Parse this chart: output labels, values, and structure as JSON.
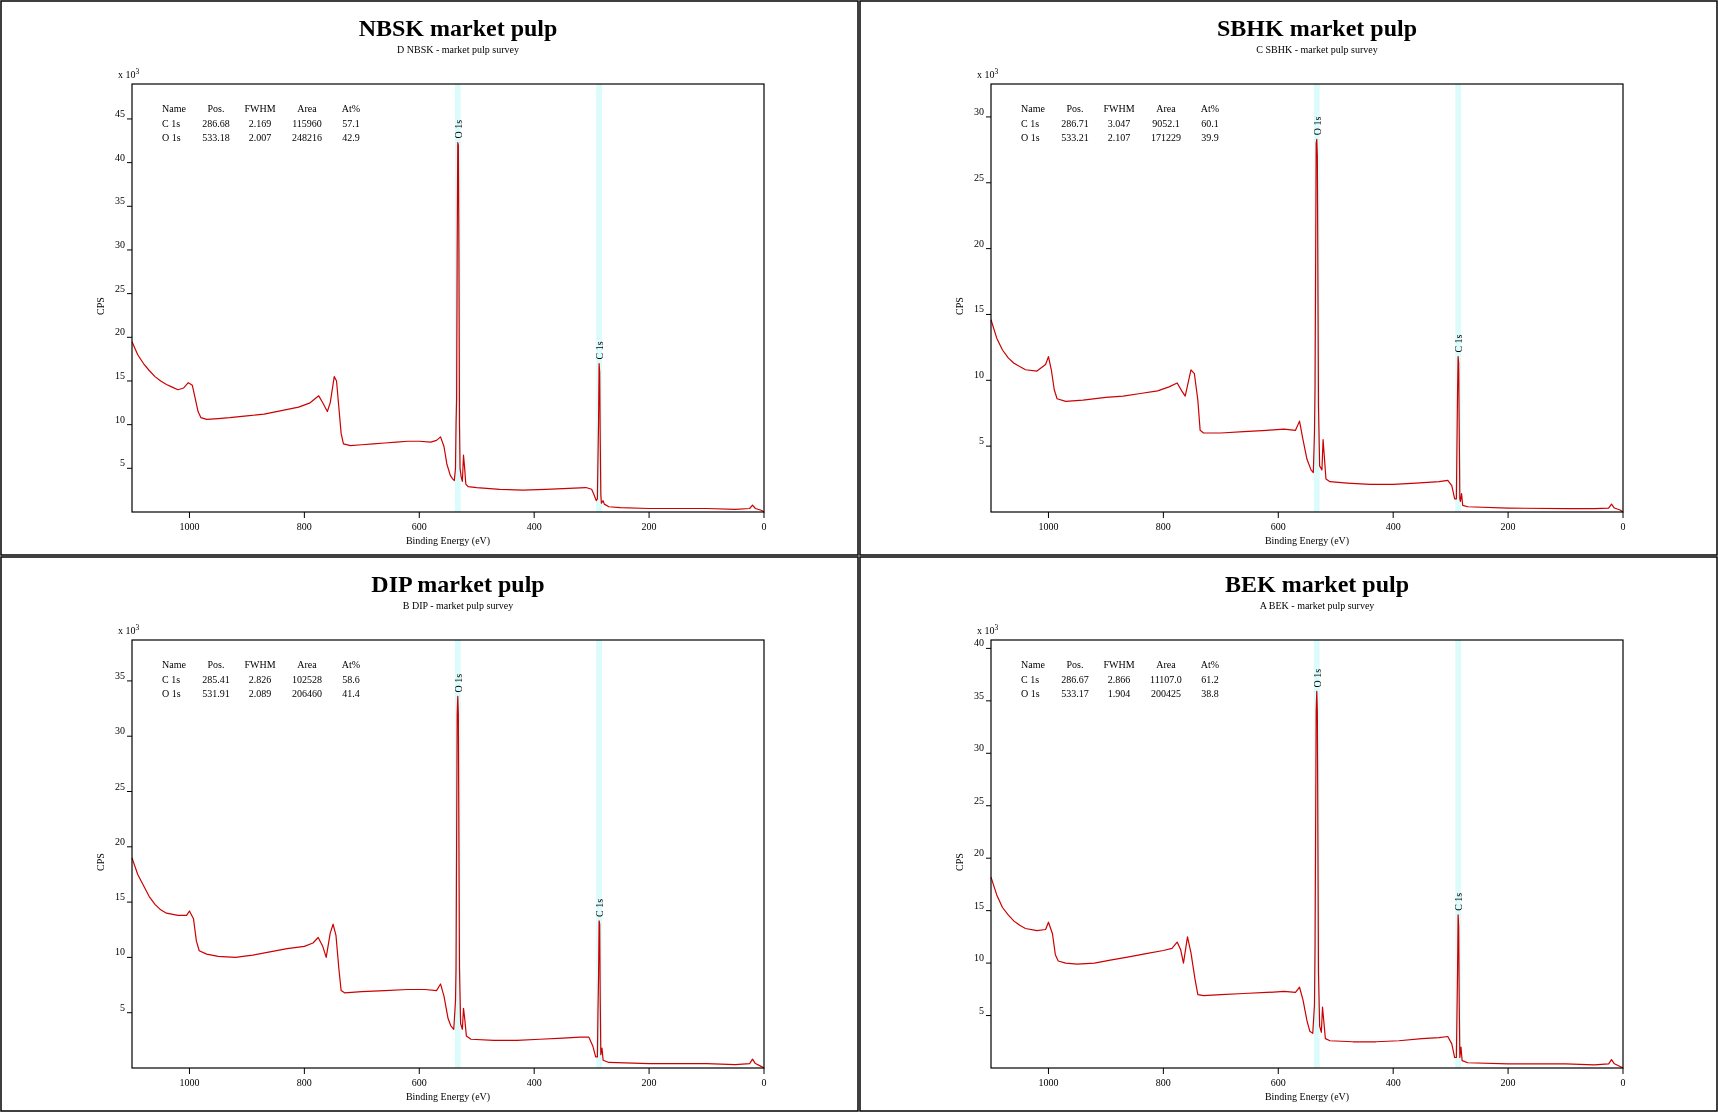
{
  "chart_data": [
    {
      "type": "line",
      "title": "NBSK market pulp",
      "subtitle": "D NBSK - market pulp survey",
      "xlabel": "Binding Energy (eV)",
      "ylabel": "CPS",
      "annotations": [
        "x 10$^{3}$",
        "Name",
        "Pos.",
        "FWHM",
        "Area",
        "At%",
        "C 1s",
        "286.68",
        "2.169",
        "115960",
        "57.1",
        "O 1s",
        "533.18",
        "2.007",
        "248216",
        "42.9"
      ],
      "xlim": [
        1100,
        0
      ],
      "xticks": [
        1000,
        800,
        600,
        400,
        200,
        0
      ],
      "ylim": [
        0,
        49
      ],
      "yticks": [
        5,
        10,
        15,
        20,
        25,
        30,
        35,
        40,
        45
      ],
      "bands": [
        {
          "axis": "x",
          "from": 538,
          "to": 528,
          "label": "O 1s",
          "color": "#dcfbfb"
        },
        {
          "axis": "x",
          "from": 292,
          "to": 282,
          "label": "C 1s",
          "color": "#dcfbfb"
        }
      ],
      "color": "#cc0000",
      "x": [
        1100,
        1090,
        1080,
        1070,
        1060,
        1050,
        1040,
        1030,
        1020,
        1010,
        1002,
        995,
        990,
        985,
        980,
        970,
        950,
        930,
        900,
        870,
        840,
        810,
        790,
        775,
        768,
        760,
        755,
        748,
        744,
        740,
        736,
        732,
        720,
        700,
        680,
        660,
        640,
        620,
        600,
        580,
        570,
        563,
        557,
        552,
        546,
        542,
        539,
        537,
        536,
        535,
        534,
        533,
        532,
        531,
        530,
        529,
        527,
        525,
        523,
        521,
        519,
        515,
        500,
        460,
        420,
        380,
        340,
        310,
        300,
        296,
        292,
        290,
        289,
        288,
        287,
        286,
        285,
        284,
        283,
        280,
        278,
        270,
        250,
        200,
        150,
        100,
        50,
        25,
        20,
        15,
        5,
        0
      ],
      "values": [
        19.5,
        18,
        17,
        16.2,
        15.5,
        15,
        14.6,
        14.3,
        14,
        14.2,
        14.8,
        14.5,
        13,
        11.5,
        10.8,
        10.6,
        10.7,
        10.8,
        11,
        11.2,
        11.6,
        12,
        12.5,
        13.3,
        12.5,
        11.5,
        12.5,
        15.5,
        15,
        12,
        9,
        7.8,
        7.6,
        7.7,
        7.8,
        7.9,
        8,
        8.1,
        8.1,
        8,
        8.2,
        8.6,
        7.5,
        5.5,
        4.2,
        3.8,
        3.6,
        5,
        10,
        13,
        30,
        42.3,
        42,
        30,
        10,
        5,
        4,
        3.5,
        6.5,
        5,
        3.2,
        2.9,
        2.8,
        2.6,
        2.5,
        2.6,
        2.7,
        2.8,
        2.6,
        2,
        1.3,
        1.5,
        6,
        10,
        17,
        16,
        8,
        2,
        1,
        1.3,
        0.9,
        0.6,
        0.5,
        0.4,
        0.4,
        0.4,
        0.3,
        0.4,
        0.8,
        0.4,
        0.2,
        0
      ]
    },
    {
      "type": "line",
      "title": "SBHK market pulp",
      "subtitle": "C SBHK - market pulp survey",
      "xlabel": "Binding Energy (eV)",
      "ylabel": "CPS",
      "annotations": [
        "x 10$^{3}$",
        "Name",
        "Pos.",
        "FWHM",
        "Area",
        "At%",
        "C 1s",
        "286.71",
        "3.047",
        "9052.1",
        "60.1",
        "O 1s",
        "533.21",
        "2.107",
        "171229",
        "39.9"
      ],
      "xlim": [
        1100,
        0
      ],
      "xticks": [
        1000,
        800,
        600,
        400,
        200,
        0
      ],
      "ylim": [
        0,
        32.5
      ],
      "yticks": [
        5,
        10,
        15,
        20,
        25,
        30
      ],
      "bands": [
        {
          "axis": "x",
          "from": 538,
          "to": 528,
          "label": "O 1s",
          "color": "#dcfbfb"
        },
        {
          "axis": "x",
          "from": 292,
          "to": 282,
          "label": "C 1s",
          "color": "#dcfbfb"
        }
      ],
      "color": "#cc0000",
      "x": [
        1100,
        1090,
        1080,
        1070,
        1060,
        1040,
        1020,
        1005,
        1000,
        995,
        990,
        985,
        970,
        940,
        900,
        870,
        840,
        810,
        790,
        776,
        768,
        762,
        752,
        746,
        740,
        736,
        730,
        700,
        660,
        620,
        590,
        570,
        563,
        557,
        550,
        543,
        539,
        537,
        536,
        534,
        533,
        532,
        530,
        528,
        524,
        522,
        520,
        517,
        510,
        480,
        440,
        400,
        360,
        320,
        305,
        298,
        293,
        290,
        289,
        288,
        287,
        286,
        285,
        284,
        283,
        281,
        279,
        270,
        200,
        100,
        50,
        25,
        20,
        15,
        5,
        0
      ],
      "values": [
        14.6,
        13.2,
        12.3,
        11.7,
        11.3,
        10.8,
        10.7,
        11.2,
        11.8,
        10.8,
        9.3,
        8.6,
        8.4,
        8.5,
        8.7,
        8.8,
        9,
        9.2,
        9.5,
        9.8,
        9.2,
        8.8,
        10.8,
        10.5,
        8.5,
        6.2,
        6,
        6,
        6.1,
        6.2,
        6.3,
        6.2,
        6.9,
        5.5,
        4,
        3.2,
        3,
        6,
        9.5,
        28,
        28.3,
        27,
        8,
        3.5,
        3.2,
        5.5,
        4.3,
        2.5,
        2.3,
        2.2,
        2.1,
        2.1,
        2.2,
        2.3,
        2.4,
        2,
        1,
        1,
        5,
        9,
        11.8,
        11.3,
        6,
        1,
        0.8,
        1.4,
        0.5,
        0.4,
        0.3,
        0.25,
        0.25,
        0.3,
        0.6,
        0.3,
        0.15,
        0
      ]
    },
    {
      "type": "line",
      "title": "DIP market pulp",
      "subtitle": "B DIP - market pulp survey",
      "xlabel": "Binding Energy (eV)",
      "ylabel": "CPS",
      "annotations": [
        "x 10$^{3}$",
        "Name",
        "Pos.",
        "FWHM",
        "Area",
        "At%",
        "C 1s",
        "285.41",
        "2.826",
        "102528",
        "58.6",
        "O 1s",
        "531.91",
        "2.089",
        "206460",
        "41.4"
      ],
      "xlim": [
        1100,
        0
      ],
      "xticks": [
        1000,
        800,
        600,
        400,
        200,
        0
      ],
      "ylim": [
        0,
        38.7
      ],
      "yticks": [
        5,
        10,
        15,
        20,
        25,
        30,
        35
      ],
      "bands": [
        {
          "axis": "x",
          "from": 538,
          "to": 528,
          "label": "O 1s",
          "color": "#dcfbfb"
        },
        {
          "axis": "x",
          "from": 292,
          "to": 282,
          "label": "C 1s",
          "color": "#dcfbfb"
        }
      ],
      "color": "#cc0000",
      "x": [
        1100,
        1090,
        1080,
        1070,
        1060,
        1050,
        1040,
        1020,
        1005,
        1000,
        993,
        988,
        983,
        970,
        950,
        920,
        890,
        860,
        830,
        800,
        785,
        776,
        768,
        762,
        755,
        750,
        745,
        740,
        736,
        730,
        700,
        660,
        620,
        590,
        570,
        563,
        557,
        550,
        545,
        540,
        537,
        536,
        534,
        533,
        532,
        530,
        528,
        525,
        523,
        521,
        518,
        510,
        470,
        430,
        390,
        350,
        320,
        305,
        298,
        293,
        290,
        289,
        288,
        287,
        286,
        285,
        284,
        282,
        280,
        270,
        200,
        100,
        50,
        25,
        20,
        15,
        5,
        0
      ],
      "values": [
        19,
        17.5,
        16.5,
        15.5,
        14.8,
        14.3,
        14,
        13.8,
        13.8,
        14.2,
        13.5,
        11.5,
        10.6,
        10.3,
        10.1,
        10,
        10.2,
        10.5,
        10.8,
        11,
        11.3,
        11.8,
        11,
        10,
        12.2,
        13,
        12,
        9,
        7,
        6.8,
        6.9,
        7,
        7.1,
        7.1,
        7,
        7.6,
        6.5,
        4.5,
        3.8,
        3.5,
        6,
        9,
        32,
        33.6,
        32,
        9,
        4,
        3.5,
        5.4,
        4.5,
        2.9,
        2.6,
        2.5,
        2.5,
        2.6,
        2.7,
        2.8,
        2.8,
        2,
        1,
        1,
        5,
        8,
        13.3,
        13,
        6,
        1.2,
        1.8,
        0.7,
        0.5,
        0.4,
        0.4,
        0.3,
        0.4,
        0.8,
        0.4,
        0.15,
        0
      ]
    },
    {
      "type": "line",
      "title": "BEK market pulp",
      "subtitle": "A BEK - market pulp survey",
      "xlabel": "Binding Energy (eV)",
      "ylabel": "CPS",
      "annotations": [
        "x 10$^{3}$",
        "Name",
        "Pos.",
        "FWHM",
        "Area",
        "At%",
        "C 1s",
        "286.67",
        "2.866",
        "11107.0",
        "61.2",
        "O 1s",
        "533.17",
        "1.904",
        "200425",
        "38.8"
      ],
      "xlim": [
        1100,
        0
      ],
      "xticks": [
        1000,
        800,
        600,
        400,
        200,
        0
      ],
      "ylim": [
        0,
        40.8
      ],
      "yticks": [
        5,
        10,
        15,
        20,
        25,
        30,
        35,
        40
      ],
      "bands": [
        {
          "axis": "x",
          "from": 538,
          "to": 528,
          "label": "O 1s",
          "color": "#dcfbfb"
        },
        {
          "axis": "x",
          "from": 292,
          "to": 282,
          "label": "C 1s",
          "color": "#dcfbfb"
        }
      ],
      "color": "#cc0000",
      "x": [
        1100,
        1090,
        1080,
        1070,
        1060,
        1050,
        1040,
        1020,
        1005,
        1000,
        993,
        988,
        983,
        970,
        950,
        920,
        890,
        860,
        830,
        800,
        785,
        776,
        770,
        765,
        758,
        752,
        745,
        740,
        730,
        700,
        660,
        620,
        590,
        570,
        563,
        557,
        550,
        545,
        540,
        537,
        536,
        534,
        533,
        532,
        530,
        528,
        525,
        523,
        521,
        518,
        510,
        470,
        430,
        390,
        350,
        320,
        305,
        298,
        293,
        290,
        289,
        288,
        287,
        286,
        285,
        284,
        282,
        280,
        270,
        200,
        100,
        50,
        25,
        20,
        15,
        5,
        0
      ],
      "values": [
        18.2,
        16.5,
        15.3,
        14.6,
        14,
        13.6,
        13.3,
        13.1,
        13.2,
        13.9,
        12.8,
        10.8,
        10.2,
        10,
        9.9,
        10,
        10.3,
        10.6,
        10.9,
        11.2,
        11.4,
        12,
        11.3,
        10,
        12.5,
        11,
        8.5,
        7,
        6.9,
        7,
        7.1,
        7.2,
        7.3,
        7.2,
        7.7,
        6.5,
        4.5,
        3.5,
        3.3,
        6,
        11.5,
        34,
        35.9,
        34,
        9,
        4,
        3.4,
        5.8,
        4.6,
        2.8,
        2.6,
        2.5,
        2.5,
        2.6,
        2.8,
        2.9,
        3,
        2.3,
        1,
        1,
        5,
        9,
        14.6,
        13.5,
        6,
        1,
        2,
        0.7,
        0.5,
        0.4,
        0.4,
        0.3,
        0.4,
        0.8,
        0.4,
        0.15,
        0
      ]
    }
  ]
}
